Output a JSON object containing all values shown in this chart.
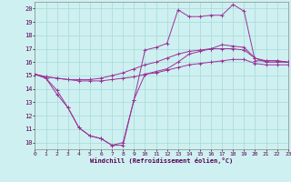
{
  "xlabel": "Windchill (Refroidissement éolien,°C)",
  "background_color": "#cff0f0",
  "grid_color": "#aadddd",
  "line_color": "#993399",
  "xmin": 0,
  "xmax": 23,
  "ymin": 9.5,
  "ymax": 20.5,
  "yticks": [
    10,
    11,
    12,
    13,
    14,
    15,
    16,
    17,
    18,
    19,
    20
  ],
  "xticks": [
    0,
    1,
    2,
    3,
    4,
    5,
    6,
    7,
    8,
    9,
    10,
    11,
    12,
    13,
    14,
    15,
    16,
    17,
    18,
    19,
    20,
    21,
    22,
    23
  ],
  "series": [
    {
      "x": [
        0,
        1,
        2,
        3,
        4,
        5,
        6,
        7,
        8,
        9,
        10,
        11,
        12,
        13,
        14,
        15,
        16,
        17,
        18,
        19,
        20,
        21,
        22,
        23
      ],
      "y": [
        15.1,
        14.8,
        13.9,
        12.6,
        11.1,
        10.5,
        10.3,
        9.8,
        9.8,
        13.2,
        16.9,
        17.1,
        17.4,
        19.9,
        19.4,
        19.4,
        19.5,
        19.5,
        20.3,
        19.8,
        16.1,
        16.1,
        16.1,
        16.0
      ]
    },
    {
      "x": [
        0,
        1,
        2,
        3,
        4,
        5,
        6,
        7,
        8,
        9,
        10,
        11,
        12,
        13,
        14,
        15,
        16,
        17,
        18,
        19,
        20,
        21,
        22,
        23
      ],
      "y": [
        15.1,
        14.8,
        13.6,
        12.6,
        11.1,
        10.5,
        10.3,
        9.8,
        10.0,
        13.2,
        15.1,
        15.3,
        15.5,
        16.0,
        16.6,
        16.8,
        17.0,
        17.3,
        17.2,
        17.1,
        16.3,
        16.0,
        16.0,
        16.0
      ]
    },
    {
      "x": [
        0,
        1,
        2,
        3,
        4,
        5,
        6,
        7,
        8,
        9,
        10,
        11,
        12,
        13,
        14,
        15,
        16,
        17,
        18,
        19,
        20,
        21,
        22,
        23
      ],
      "y": [
        15.1,
        14.9,
        14.8,
        14.7,
        14.7,
        14.7,
        14.8,
        15.0,
        15.2,
        15.5,
        15.8,
        16.0,
        16.3,
        16.6,
        16.8,
        16.9,
        17.0,
        17.0,
        17.0,
        16.9,
        16.3,
        16.1,
        16.1,
        16.0
      ]
    },
    {
      "x": [
        0,
        1,
        2,
        3,
        4,
        5,
        6,
        7,
        8,
        9,
        10,
        11,
        12,
        13,
        14,
        15,
        16,
        17,
        18,
        19,
        20,
        21,
        22,
        23
      ],
      "y": [
        15.1,
        14.9,
        14.8,
        14.7,
        14.6,
        14.6,
        14.6,
        14.7,
        14.8,
        14.9,
        15.1,
        15.2,
        15.4,
        15.6,
        15.8,
        15.9,
        16.0,
        16.1,
        16.2,
        16.2,
        15.9,
        15.8,
        15.8,
        15.8
      ]
    }
  ]
}
